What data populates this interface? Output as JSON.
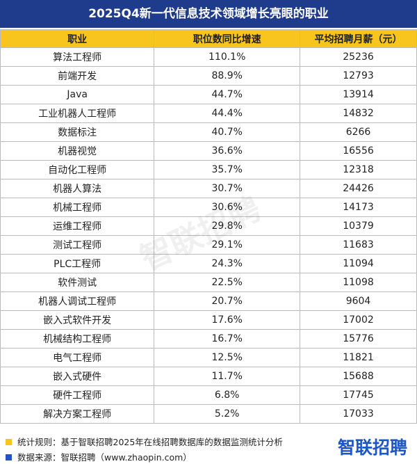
{
  "header": {
    "title": "2025Q4新一代信息技术领域增长亮眼的职业"
  },
  "table": {
    "columns": [
      "职业",
      "职位数同比增速",
      "平均招聘月薪（元）"
    ],
    "rows": [
      [
        "算法工程师",
        "110.1%",
        25236
      ],
      [
        "前端开发",
        "88.9%",
        12793
      ],
      [
        "Java",
        "44.7%",
        13914
      ],
      [
        "工业机器人工程师",
        "44.4%",
        14832
      ],
      [
        "数据标注",
        "40.7%",
        6266
      ],
      [
        "机器视觉",
        "36.6%",
        16556
      ],
      [
        "自动化工程师",
        "35.7%",
        12318
      ],
      [
        "机器人算法",
        "30.7%",
        24426
      ],
      [
        "机械工程师",
        "30.6%",
        14173
      ],
      [
        "运维工程师",
        "29.8%",
        10379
      ],
      [
        "测试工程师",
        "29.1%",
        11683
      ],
      [
        "PLC工程师",
        "24.3%",
        11094
      ],
      [
        "软件测试",
        "22.5%",
        11098
      ],
      [
        "机器人调试工程师",
        "20.7%",
        9604
      ],
      [
        "嵌入式软件开发",
        "17.6%",
        17002
      ],
      [
        "机械结构工程师",
        "16.7%",
        15776
      ],
      [
        "电气工程师",
        "12.5%",
        11821
      ],
      [
        "嵌入式硬件",
        "11.7%",
        15688
      ],
      [
        "硬件工程师",
        "6.8%",
        17745
      ],
      [
        "解决方案工程师",
        "5.2%",
        17033
      ]
    ]
  },
  "watermark": "智联招聘",
  "footer": {
    "notes": [
      "统计规则：基于智联招聘2025年在线招聘数据库的数据监测统计分析",
      "数据来源：智联招聘（www.zhaopin.com）"
    ],
    "logo": "智联招聘"
  }
}
